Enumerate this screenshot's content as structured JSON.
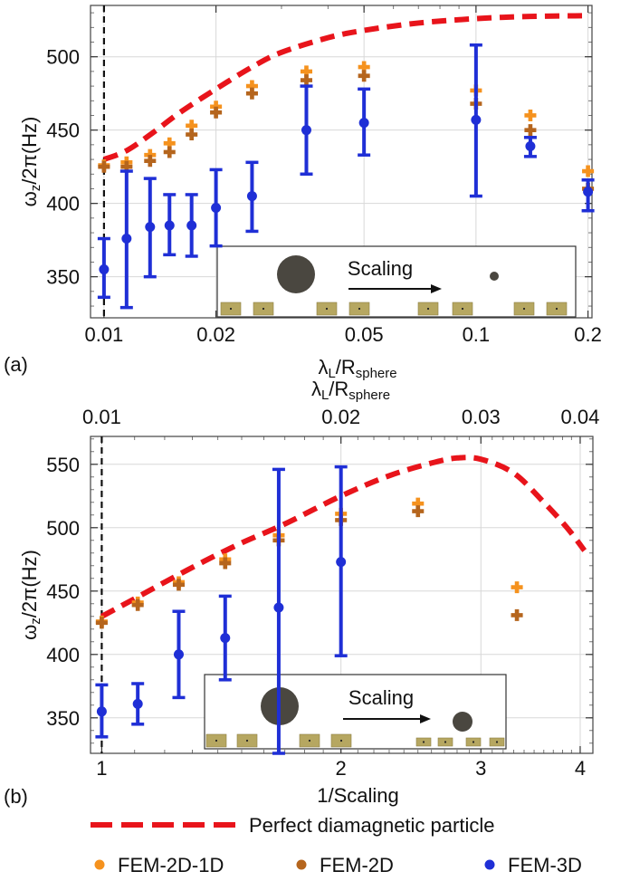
{
  "legend": {
    "perfect_label": "Perfect diamagnetic particle",
    "items": [
      {
        "label": "FEM-2D-1D",
        "color": "#f5921e"
      },
      {
        "label": "FEM-2D",
        "color": "#b5651d"
      },
      {
        "label": "FEM-3D",
        "color": "#1f2fd6"
      }
    ],
    "perfect_color": "#e8141b"
  },
  "chart_data": [
    {
      "type": "scatter",
      "panel_label": "(a)",
      "xlabel": "λL/Rsphere",
      "ylabel": "ωz/2π(Hz)",
      "x_scale": "log",
      "xlim": [
        0.0092,
        0.205
      ],
      "ylim": [
        322,
        535
      ],
      "x_ticks": [
        0.01,
        0.02,
        0.05,
        0.1,
        0.2
      ],
      "x_tick_labels": [
        "0.01",
        "0.02",
        "0.05",
        "0.1",
        "0.2"
      ],
      "y_ticks": [
        350,
        400,
        450,
        500
      ],
      "y_tick_labels": [
        "350",
        "400",
        "450",
        "500"
      ],
      "grid": true,
      "vline_x": 0.01,
      "inset": {
        "label": "Scaling"
      },
      "perfect_curve": {
        "x": [
          0.01,
          0.0115,
          0.0135,
          0.016,
          0.02,
          0.025,
          0.03,
          0.04,
          0.05,
          0.07,
          0.1,
          0.14,
          0.2
        ],
        "y": [
          430,
          436,
          448,
          462,
          478,
          493,
          503,
          513,
          518,
          523,
          526,
          527.5,
          528
        ]
      },
      "series": [
        {
          "name": "FEM-2D-1D",
          "x": [
            0.01,
            0.0115,
            0.0133,
            0.015,
            0.0172,
            0.02,
            0.025,
            0.035,
            0.05,
            0.1,
            0.14,
            0.2
          ],
          "y": [
            426,
            428,
            433,
            441,
            453,
            466,
            480,
            490,
            493,
            477,
            460,
            422
          ]
        },
        {
          "name": "FEM-2D",
          "x": [
            0.01,
            0.0115,
            0.0133,
            0.015,
            0.0172,
            0.02,
            0.025,
            0.035,
            0.05,
            0.1,
            0.14,
            0.2
          ],
          "y": [
            425,
            425,
            429,
            435,
            447,
            462,
            475,
            484,
            487,
            468,
            450,
            410
          ]
        },
        {
          "name": "FEM-3D",
          "x": [
            0.01,
            0.0115,
            0.0133,
            0.015,
            0.0172,
            0.02,
            0.025,
            0.035,
            0.05,
            0.1,
            0.14,
            0.2
          ],
          "y": [
            355,
            376,
            384,
            385,
            385,
            397,
            405,
            450,
            455,
            457,
            439,
            408
          ],
          "err_low": [
            336,
            329,
            350,
            365,
            364,
            371,
            381,
            420,
            433,
            405,
            432,
            395
          ],
          "err_high": [
            376,
            422,
            417,
            406,
            406,
            423,
            428,
            480,
            478,
            508,
            445,
            416
          ]
        }
      ]
    },
    {
      "type": "scatter",
      "panel_label": "(b)",
      "xlabel": "1/Scaling",
      "x2label": "λL/Rsphere",
      "ylabel": "ωz/2π(Hz)",
      "x_scale": "log",
      "xlim": [
        0.968,
        4.15
      ],
      "ylim": [
        322,
        572
      ],
      "x_ticks": [
        1,
        2,
        3,
        4
      ],
      "x_tick_labels": [
        "1",
        "2",
        "3",
        "4"
      ],
      "x2_ticks": [
        1,
        2,
        3,
        4
      ],
      "x2_tick_labels": [
        "0.01",
        "0.02",
        "0.03",
        "0.04"
      ],
      "y_ticks": [
        350,
        400,
        450,
        500,
        550
      ],
      "y_tick_labels": [
        "350",
        "400",
        "450",
        "500",
        "550"
      ],
      "grid": true,
      "vline_x": 1,
      "inset": {
        "label": "Scaling"
      },
      "perfect_curve": {
        "x": [
          1,
          1.1,
          1.2,
          1.35,
          1.5,
          1.7,
          2.0,
          2.3,
          2.6,
          2.8,
          3.0,
          3.3,
          3.6,
          3.85,
          4.05
        ],
        "y": [
          430,
          444,
          457,
          474,
          488,
          503,
          525,
          541,
          551,
          555,
          554,
          543,
          520,
          500,
          482
        ]
      },
      "series": [
        {
          "name": "FEM-2D-1D",
          "x": [
            1,
            1.11,
            1.25,
            1.43,
            1.67,
            2.0,
            2.5,
            3.33
          ],
          "y": [
            426,
            441,
            457,
            475,
            494,
            511,
            519,
            453
          ]
        },
        {
          "name": "FEM-2D",
          "x": [
            1,
            1.11,
            1.25,
            1.43,
            1.67,
            2.0,
            2.5,
            3.33
          ],
          "y": [
            425,
            439,
            455,
            472,
            490,
            506,
            513,
            431
          ]
        },
        {
          "name": "FEM-3D",
          "x": [
            1,
            1.11,
            1.25,
            1.43,
            1.67,
            2.0
          ],
          "y": [
            355,
            361,
            400,
            413,
            437,
            473
          ],
          "err_low": [
            335,
            345,
            366,
            380,
            322,
            399
          ],
          "err_high": [
            376,
            377,
            434,
            446,
            546,
            548
          ]
        }
      ]
    }
  ]
}
